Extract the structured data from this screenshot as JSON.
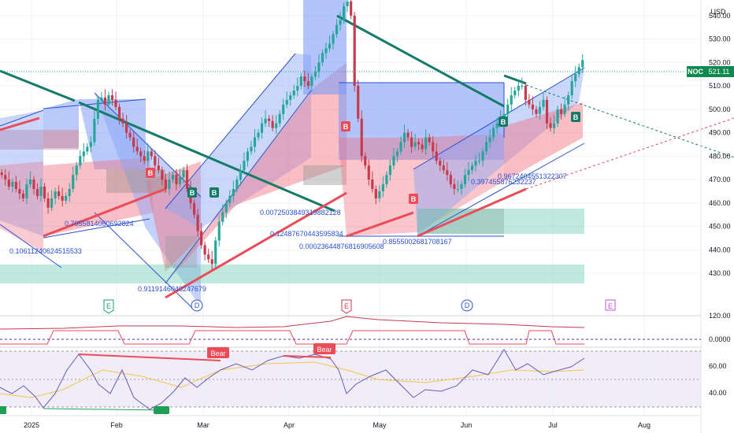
{
  "chart_data": {
    "type": "candlestick",
    "symbol": "NOC",
    "currency": "USD",
    "last_price": "521.11",
    "ylim": [
      423,
      550
    ],
    "y_ticks": [
      "540.00",
      "530.00",
      "520.00",
      "510.00",
      "500.00",
      "490.00",
      "480.00",
      "470.00",
      "460.00",
      "450.00",
      "440.00",
      "430.00"
    ],
    "x_ticks": [
      "2025",
      "Feb",
      "Mar",
      "Apr",
      "May",
      "Jun",
      "Jul",
      "Aug"
    ],
    "events": [
      "E",
      "D",
      "E",
      "D",
      "E"
    ],
    "fib_labels": [
      "0.10611240624515533",
      "0.7055814060692824",
      "0.9119146040247679",
      "0.0072503849319882128",
      "0.12487670443595834",
      "0.00023644876816905608",
      "0.8555002681708167",
      "0.397455876232237",
      "0.9672404551322307"
    ],
    "signals": [
      "B",
      "B",
      "B",
      "B",
      "B",
      "B",
      "B"
    ],
    "indicator1": {
      "ticks": [
        "0.0000"
      ],
      "extra_tick": "120.00"
    },
    "indicator2": {
      "ticks": [
        "60.00",
        "40.00"
      ],
      "divergence_labels": [
        "Bear",
        "Bear"
      ]
    },
    "colors": {
      "up": "#26a69a",
      "down": "#c73a4b",
      "accent": "#1f9e55",
      "blue_zone": "#6f8ff5",
      "red_zone": "#f26d7d",
      "green_zone": "#74cfb6"
    }
  },
  "closes": [
    472,
    470,
    467,
    469,
    466,
    464,
    462,
    468,
    470,
    466,
    463,
    467,
    462,
    458,
    462,
    465,
    463,
    461,
    463,
    466,
    472,
    476,
    480,
    482,
    484,
    486,
    496,
    504,
    505,
    502,
    506,
    504,
    501,
    496,
    494,
    490,
    488,
    484,
    482,
    480,
    478,
    482,
    480,
    476,
    474,
    470,
    466,
    470,
    472,
    468,
    471,
    474,
    466,
    460,
    455,
    448,
    442,
    438,
    436,
    434,
    444,
    452,
    456,
    460,
    463,
    466,
    470,
    474,
    478,
    482,
    484,
    488,
    490,
    494,
    496,
    495,
    492,
    494,
    498,
    502,
    504,
    506,
    508,
    510,
    514,
    512,
    510,
    514,
    516,
    520,
    524,
    526,
    528,
    532,
    536,
    538,
    544,
    546,
    540,
    510,
    496,
    480,
    476,
    470,
    466,
    462,
    465,
    468,
    472,
    476,
    480,
    482,
    486,
    490,
    488,
    484,
    486,
    485,
    483,
    488,
    486,
    482,
    478,
    476,
    474,
    472,
    468,
    466,
    466,
    468,
    472,
    474,
    476,
    478,
    478,
    482,
    486,
    488,
    492,
    494,
    496,
    498,
    502,
    506,
    508,
    510,
    510,
    504,
    502,
    500,
    498,
    501,
    504,
    494,
    492,
    494,
    500,
    498,
    502,
    506,
    512,
    515,
    518,
    521
  ]
}
